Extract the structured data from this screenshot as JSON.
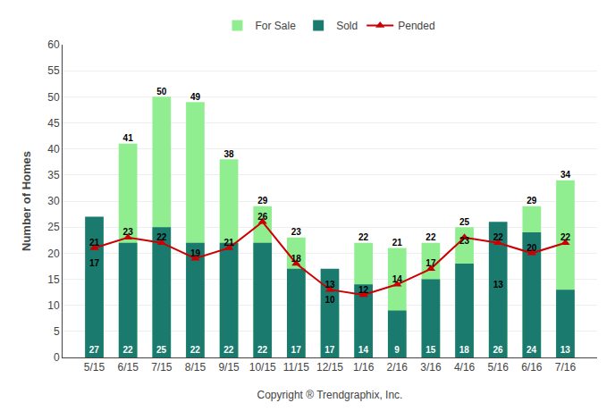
{
  "chart_data": {
    "type": "bar",
    "categories": [
      "5/15",
      "6/15",
      "7/15",
      "8/15",
      "9/15",
      "10/15",
      "11/15",
      "12/15",
      "1/16",
      "2/16",
      "3/16",
      "4/16",
      "5/16",
      "6/16",
      "7/16"
    ],
    "series": [
      {
        "name": "For Sale",
        "type": "bar",
        "color": "#90EE90",
        "values": [
          17,
          41,
          50,
          49,
          38,
          29,
          23,
          10,
          22,
          21,
          22,
          25,
          13,
          29,
          34
        ]
      },
      {
        "name": "Sold",
        "type": "bar",
        "color": "#1A7A6E",
        "values": [
          27,
          22,
          25,
          22,
          22,
          22,
          17,
          17,
          14,
          9,
          15,
          18,
          26,
          24,
          13
        ]
      },
      {
        "name": "Pended",
        "type": "line",
        "color": "#CC0000",
        "marker": "triangle",
        "values": [
          21,
          23,
          22,
          19,
          21,
          26,
          18,
          13,
          12,
          14,
          17,
          23,
          22,
          20,
          22
        ]
      }
    ],
    "xlabel": "Copyright ® Trendgraphix, Inc.",
    "ylabel": "Number of Homes",
    "ylim": [
      0,
      60
    ],
    "yticks": [
      0,
      5,
      10,
      15,
      20,
      25,
      30,
      35,
      40,
      45,
      50,
      55,
      60
    ],
    "grid": true,
    "legend": "top",
    "data_labels": true
  }
}
